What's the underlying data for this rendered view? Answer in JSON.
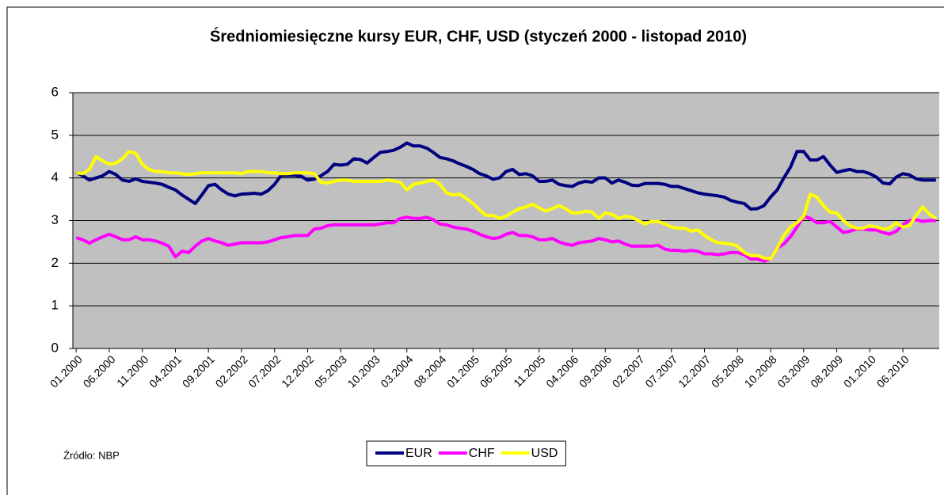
{
  "chart_data": {
    "type": "line",
    "title": "Średniomiesięczne kursy EUR, CHF, USD (styczeń 2000 - listopad 2010)",
    "annotation": "Źródło: NBP",
    "categories": [
      "01.2000",
      null,
      null,
      null,
      null,
      "06.2000",
      null,
      null,
      null,
      null,
      "11.2000",
      null,
      null,
      null,
      null,
      "04.2001",
      null,
      null,
      null,
      null,
      "09.2001",
      null,
      null,
      null,
      null,
      "02.2002",
      null,
      null,
      null,
      null,
      "07.2002",
      null,
      null,
      null,
      null,
      "12.2002",
      null,
      null,
      null,
      null,
      "05.2003",
      null,
      null,
      null,
      null,
      "10.2003",
      null,
      null,
      null,
      null,
      "03.2004",
      null,
      null,
      null,
      null,
      "08.2004",
      null,
      null,
      null,
      null,
      "01.2005",
      null,
      null,
      null,
      null,
      "06.2005",
      null,
      null,
      null,
      null,
      "11.2005",
      null,
      null,
      null,
      null,
      "04.2006",
      null,
      null,
      null,
      null,
      "09.2006",
      null,
      null,
      null,
      null,
      "02.2007",
      null,
      null,
      null,
      null,
      "07.2007",
      null,
      null,
      null,
      null,
      "12.2007",
      null,
      null,
      null,
      null,
      "05.2008",
      null,
      null,
      null,
      null,
      "10.2008",
      null,
      null,
      null,
      null,
      "03.2009",
      null,
      null,
      null,
      null,
      "08.2009",
      null,
      null,
      null,
      null,
      "01.2010",
      null,
      null,
      null,
      null,
      "06.2010",
      null,
      null,
      null,
      null,
      null
    ],
    "series": [
      {
        "name": "EUR",
        "color": "#000080",
        "values": [
          4.13,
          4.05,
          3.95,
          4.0,
          4.05,
          4.15,
          4.08,
          3.95,
          3.92,
          3.98,
          3.92,
          3.9,
          3.88,
          3.85,
          3.78,
          3.72,
          3.6,
          3.5,
          3.4,
          3.6,
          3.82,
          3.85,
          3.72,
          3.62,
          3.58,
          3.62,
          3.63,
          3.64,
          3.62,
          3.7,
          3.85,
          4.06,
          4.06,
          4.06,
          4.04,
          3.95,
          3.97,
          4.05,
          4.15,
          4.32,
          4.3,
          4.32,
          4.45,
          4.43,
          4.35,
          4.48,
          4.6,
          4.62,
          4.65,
          4.72,
          4.82,
          4.75,
          4.75,
          4.7,
          4.6,
          4.48,
          4.45,
          4.4,
          4.33,
          4.27,
          4.2,
          4.1,
          4.05,
          3.97,
          4.0,
          4.15,
          4.2,
          4.08,
          4.1,
          4.05,
          3.92,
          3.92,
          3.95,
          3.85,
          3.82,
          3.8,
          3.88,
          3.92,
          3.9,
          4.0,
          4.0,
          3.88,
          3.95,
          3.9,
          3.83,
          3.82,
          3.87,
          3.87,
          3.87,
          3.85,
          3.8,
          3.8,
          3.75,
          3.7,
          3.65,
          3.62,
          3.6,
          3.58,
          3.55,
          3.47,
          3.43,
          3.4,
          3.27,
          3.28,
          3.35,
          3.55,
          3.72,
          4.0,
          4.25,
          4.62,
          4.62,
          4.42,
          4.42,
          4.5,
          4.3,
          4.13,
          4.17,
          4.2,
          4.15,
          4.15,
          4.1,
          4.02,
          3.88,
          3.86,
          4.02,
          4.1,
          4.07,
          3.98,
          3.95,
          3.95,
          3.95
        ]
      },
      {
        "name": "CHF",
        "color": "#ff00ff",
        "values": [
          2.6,
          2.55,
          2.47,
          2.55,
          2.62,
          2.68,
          2.62,
          2.55,
          2.55,
          2.62,
          2.55,
          2.55,
          2.52,
          2.47,
          2.4,
          2.15,
          2.28,
          2.25,
          2.4,
          2.52,
          2.58,
          2.52,
          2.48,
          2.42,
          2.45,
          2.48,
          2.48,
          2.48,
          2.48,
          2.5,
          2.55,
          2.6,
          2.62,
          2.65,
          2.65,
          2.65,
          2.8,
          2.82,
          2.88,
          2.9,
          2.9,
          2.9,
          2.9,
          2.9,
          2.9,
          2.9,
          2.92,
          2.95,
          2.95,
          3.05,
          3.08,
          3.05,
          3.05,
          3.08,
          3.02,
          2.92,
          2.9,
          2.85,
          2.82,
          2.8,
          2.75,
          2.68,
          2.62,
          2.58,
          2.6,
          2.68,
          2.72,
          2.65,
          2.65,
          2.62,
          2.55,
          2.55,
          2.58,
          2.5,
          2.45,
          2.42,
          2.48,
          2.5,
          2.52,
          2.58,
          2.55,
          2.5,
          2.52,
          2.45,
          2.4,
          2.4,
          2.4,
          2.4,
          2.42,
          2.33,
          2.3,
          2.3,
          2.28,
          2.3,
          2.28,
          2.22,
          2.22,
          2.2,
          2.22,
          2.25,
          2.25,
          2.2,
          2.1,
          2.1,
          2.05,
          2.1,
          2.35,
          2.45,
          2.62,
          2.85,
          3.1,
          3.05,
          2.95,
          2.95,
          2.98,
          2.85,
          2.72,
          2.75,
          2.8,
          2.8,
          2.78,
          2.78,
          2.72,
          2.68,
          2.75,
          2.9,
          3.0,
          3.02,
          2.98,
          3.0,
          3.0
        ]
      },
      {
        "name": "USD",
        "color": "#ffff00",
        "values": [
          4.12,
          4.1,
          4.2,
          4.5,
          4.4,
          4.32,
          4.35,
          4.45,
          4.62,
          4.58,
          4.32,
          4.2,
          4.15,
          4.15,
          4.12,
          4.12,
          4.1,
          4.08,
          4.1,
          4.12,
          4.12,
          4.12,
          4.12,
          4.12,
          4.12,
          4.1,
          4.15,
          4.15,
          4.15,
          4.12,
          4.12,
          4.1,
          4.1,
          4.12,
          4.12,
          4.12,
          4.1,
          3.9,
          3.88,
          3.92,
          3.95,
          3.95,
          3.92,
          3.92,
          3.92,
          3.92,
          3.92,
          3.95,
          3.93,
          3.9,
          3.72,
          3.85,
          3.88,
          3.92,
          3.95,
          3.85,
          3.65,
          3.6,
          3.62,
          3.52,
          3.4,
          3.25,
          3.12,
          3.12,
          3.05,
          3.1,
          3.2,
          3.28,
          3.32,
          3.38,
          3.3,
          3.22,
          3.28,
          3.35,
          3.28,
          3.18,
          3.18,
          3.22,
          3.2,
          3.05,
          3.18,
          3.15,
          3.05,
          3.1,
          3.08,
          3.0,
          2.92,
          2.98,
          2.98,
          2.92,
          2.85,
          2.82,
          2.82,
          2.75,
          2.78,
          2.65,
          2.55,
          2.48,
          2.47,
          2.45,
          2.4,
          2.25,
          2.18,
          2.18,
          2.12,
          2.1,
          2.35,
          2.65,
          2.85,
          2.95,
          3.1,
          3.62,
          3.55,
          3.35,
          3.2,
          3.18,
          3.0,
          2.88,
          2.82,
          2.82,
          2.88,
          2.85,
          2.8,
          2.82,
          2.95,
          2.85,
          2.88,
          3.12,
          3.32,
          3.15,
          3.05
        ]
      }
    ],
    "ylim": [
      0,
      6
    ],
    "yticks": [
      0,
      1,
      2,
      3,
      4,
      5,
      6
    ],
    "grid": true,
    "legend": "bottom",
    "plot_background": "#c0c0c0"
  }
}
